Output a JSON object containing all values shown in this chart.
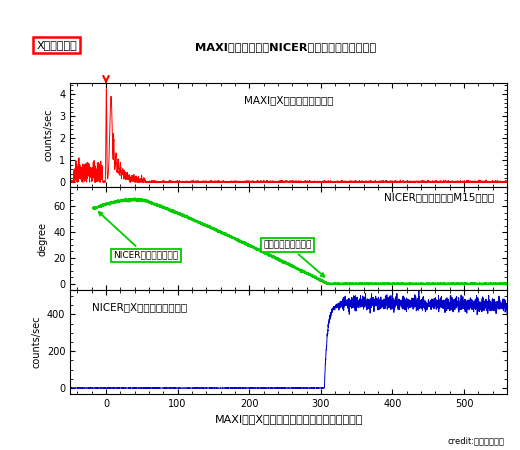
{
  "title": "MAXIでの検出からNICERによる観測までの流れ",
  "xlabel": "MAXIでのX線バースト発見からの時刻（秒）",
  "xburst_label": "X線バースト",
  "panel1_label": "MAXIのX線カウントレート",
  "panel2_label": "NICERの視野中心とM15の離角",
  "panel3_label": "NICERのX線カウントレート",
  "panel1_ylabel": "counts/sec",
  "panel2_ylabel": "degree",
  "panel3_ylabel": "counts/sec",
  "annotation1": "NICERの天体導入開始",
  "annotation2": "導入終了、追尾開始",
  "credit": "credit:理化学研究所",
  "xlim": [
    -50,
    560
  ],
  "panel1_ylim": [
    -0.2,
    4.5
  ],
  "panel1_yticks": [
    0,
    1,
    2,
    3,
    4
  ],
  "panel2_ylim": [
    -5,
    75
  ],
  "panel2_yticks": [
    0,
    20,
    40,
    60
  ],
  "panel3_ylim": [
    -30,
    530
  ],
  "panel3_yticks": [
    0,
    200,
    400
  ],
  "color_red": "#FF0000",
  "color_green": "#00CC00",
  "color_blue": "#0000CC",
  "bg_color": "#FFFFFF",
  "annotation_box_color": "#00CC00"
}
